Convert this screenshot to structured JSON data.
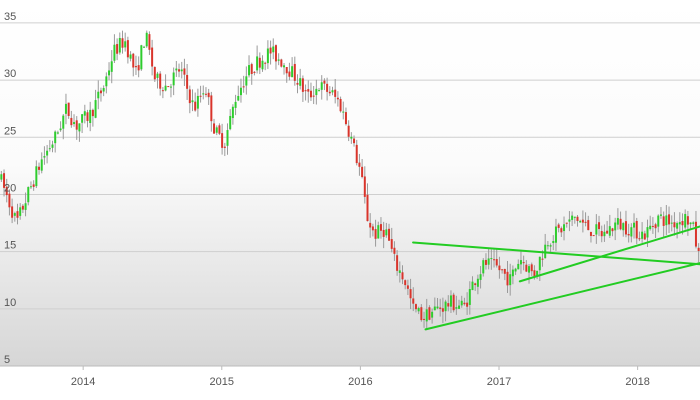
{
  "chart_data": {
    "type": "candlestick",
    "grid": true,
    "legend": "none",
    "ylim": [
      5,
      37
    ],
    "y_ticks": [
      5,
      10,
      15,
      20,
      25,
      30,
      35
    ],
    "x_ticks": [
      {
        "label": "2014",
        "value": 2014.0
      },
      {
        "label": "2015",
        "value": 2015.0
      },
      {
        "label": "2016",
        "value": 2016.0
      },
      {
        "label": "2017",
        "value": 2017.0
      },
      {
        "label": "2018",
        "value": 2018.0
      }
    ],
    "xlim": [
      2013.4,
      2018.45
    ],
    "colors": {
      "up": "#2ecc2e",
      "down": "#d9342b",
      "trendline": "#22cc22",
      "grid": "#cfcfcf"
    },
    "path_points": [
      [
        2013.4,
        21.5
      ],
      [
        2013.46,
        19.5
      ],
      [
        2013.52,
        17.5
      ],
      [
        2013.6,
        20.0
      ],
      [
        2013.7,
        23.0
      ],
      [
        2013.8,
        25.0
      ],
      [
        2013.88,
        27.5
      ],
      [
        2013.95,
        26.0
      ],
      [
        2014.05,
        27.0
      ],
      [
        2014.15,
        29.5
      ],
      [
        2014.22,
        32.5
      ],
      [
        2014.3,
        33.5
      ],
      [
        2014.38,
        30.5
      ],
      [
        2014.45,
        34.0
      ],
      [
        2014.52,
        30.0
      ],
      [
        2014.6,
        29.5
      ],
      [
        2014.7,
        31.0
      ],
      [
        2014.8,
        27.5
      ],
      [
        2014.88,
        29.5
      ],
      [
        2014.95,
        25.5
      ],
      [
        2015.02,
        24.5
      ],
      [
        2015.1,
        28.5
      ],
      [
        2015.18,
        30.5
      ],
      [
        2015.25,
        31.5
      ],
      [
        2015.35,
        32.5
      ],
      [
        2015.45,
        31.5
      ],
      [
        2015.55,
        30.0
      ],
      [
        2015.62,
        28.5
      ],
      [
        2015.7,
        29.5
      ],
      [
        2015.78,
        29.0
      ],
      [
        2015.85,
        28.0
      ],
      [
        2015.92,
        25.5
      ],
      [
        2016.0,
        22.0
      ],
      [
        2016.05,
        18.0
      ],
      [
        2016.1,
        16.5
      ],
      [
        2016.18,
        17.0
      ],
      [
        2016.25,
        14.0
      ],
      [
        2016.32,
        12.5
      ],
      [
        2016.38,
        10.0
      ],
      [
        2016.45,
        9.3
      ],
      [
        2016.55,
        10.0
      ],
      [
        2016.65,
        10.5
      ],
      [
        2016.75,
        10.2
      ],
      [
        2016.82,
        12.5
      ],
      [
        2016.9,
        14.0
      ],
      [
        2017.0,
        13.5
      ],
      [
        2017.08,
        12.5
      ],
      [
        2017.15,
        14.5
      ],
      [
        2017.25,
        13.0
      ],
      [
        2017.35,
        16.0
      ],
      [
        2017.45,
        17.0
      ],
      [
        2017.55,
        18.0
      ],
      [
        2017.65,
        17.0
      ],
      [
        2017.75,
        16.5
      ],
      [
        2017.85,
        17.5
      ],
      [
        2017.95,
        17.0
      ],
      [
        2018.05,
        16.5
      ],
      [
        2018.15,
        18.0
      ],
      [
        2018.25,
        17.5
      ],
      [
        2018.35,
        18.0
      ],
      [
        2018.4,
        17.0
      ],
      [
        2018.45,
        14.0
      ]
    ],
    "trendlines": [
      {
        "from": [
          2016.38,
          15.8
        ],
        "to": [
          2018.45,
          13.9
        ]
      },
      {
        "from": [
          2016.47,
          8.2
        ],
        "to": [
          2018.45,
          14.0
        ]
      },
      {
        "from": [
          2017.15,
          12.4
        ],
        "to": [
          2018.45,
          17.2
        ]
      }
    ]
  }
}
